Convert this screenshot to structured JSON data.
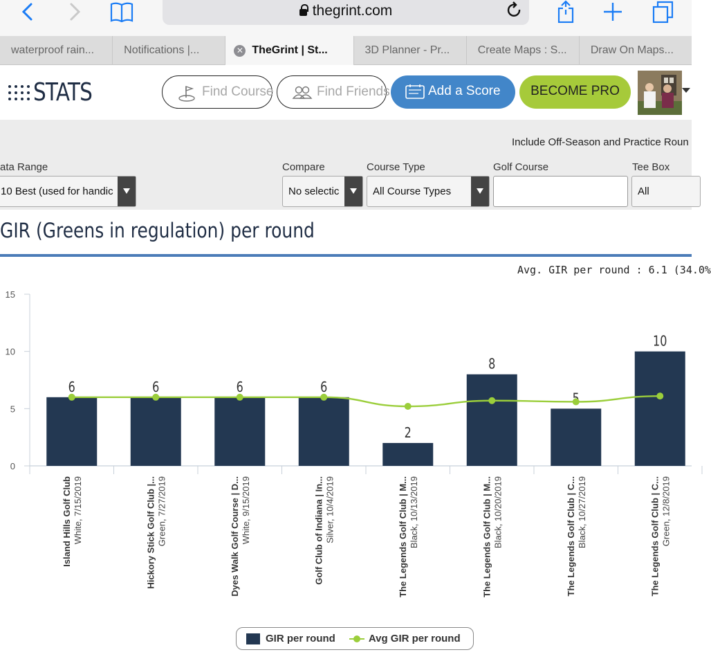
{
  "browser": {
    "url": "thegrint.com",
    "tabs": [
      {
        "label": "waterproof rain..."
      },
      {
        "label": "Notifications |..."
      },
      {
        "label": "TheGrint | St...",
        "active": true
      },
      {
        "label": "3D Planner - Pr..."
      },
      {
        "label": "Create Maps : S..."
      },
      {
        "label": "Draw On Maps..."
      }
    ],
    "tab_close_glyph": "✕",
    "icons": [
      "back-icon",
      "forward-icon",
      "bookmarks-icon",
      "lock-icon",
      "reload-icon",
      "share-icon",
      "new-tab-icon",
      "tabs-icon"
    ]
  },
  "header": {
    "logo_text": "STATS",
    "find_course": "Find Course",
    "find_friends": "Find Friends",
    "add_score": "Add a Score",
    "become_pro": "BECOME PRO"
  },
  "filters": {
    "off_season_note": "Include Off-Season and Practice Roun",
    "data_range_label": "ata Range",
    "data_range_value": "10 Best (used for handic",
    "compare_label": "Compare",
    "compare_value": "No selectic",
    "course_type_label": "Course Type",
    "course_type_value": "All Course Types",
    "golf_course_label": "Golf Course",
    "golf_course_value": "",
    "tee_box_label": "Tee Box",
    "tee_box_value": "All"
  },
  "section": {
    "title": "GIR (Greens in regulation) per round",
    "avg_text": "Avg. GIR per round : 6.1 (34.0%"
  },
  "colors": {
    "bar": "#233852",
    "avg_line": "#9bce3b",
    "accent_blue": "#4286c9",
    "accent_green": "#a6ca3a",
    "rule": "#4b7cb8"
  },
  "chart_data": {
    "type": "bar",
    "categories": [
      {
        "course": "Island Hills Golf Club",
        "detail": "White, 7/15/2019"
      },
      {
        "course": "Hickory Stick Golf Club |...",
        "detail": "Green, 7/27/2019"
      },
      {
        "course": "Dyes Walk Golf Course | D...",
        "detail": "White, 9/15/2019"
      },
      {
        "course": "Golf Club of Indiana | In...",
        "detail": "Silver, 10/4/2019"
      },
      {
        "course": "The Legends Golf Club | M...",
        "detail": "Black, 10/13/2019"
      },
      {
        "course": "The Legends Golf Club | M...",
        "detail": "Black, 10/20/2019"
      },
      {
        "course": "The Legends Golf Club | C...",
        "detail": "Black, 10/27/2019"
      },
      {
        "course": "The Legends Golf Club | C...",
        "detail": "Green, 12/8/2019"
      }
    ],
    "series": [
      {
        "name": "GIR per round",
        "type": "bar",
        "values": [
          6,
          6,
          6,
          6,
          2,
          8,
          5,
          10
        ]
      },
      {
        "name": "Avg GIR per round",
        "type": "line",
        "values": [
          6,
          6,
          6,
          6,
          5.2,
          5.7,
          5.6,
          6.1
        ]
      }
    ],
    "yticks": [
      0,
      5,
      10,
      15
    ],
    "ylim": [
      0,
      15
    ],
    "grid": false,
    "legend_position": "bottom"
  }
}
